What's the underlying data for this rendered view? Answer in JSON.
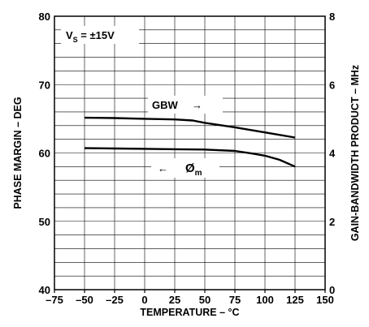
{
  "chart_data": {
    "type": "line",
    "xlabel": "TEMPERATURE – °C",
    "ylabel": "PHASE MARGIN – DEG",
    "y2label": "GAIN-BANDWIDTH PRODUCT – MHz",
    "xlim": [
      -75,
      150
    ],
    "ylim": [
      40,
      80
    ],
    "y2lim": [
      0,
      8
    ],
    "x_ticks": [
      "–75",
      "–50",
      "–25",
      "0",
      "25",
      "50",
      "75",
      "100",
      "125",
      "150"
    ],
    "y_ticks": [
      "40",
      "50",
      "60",
      "70",
      "80"
    ],
    "y2_ticks": [
      "0",
      "2",
      "4",
      "6",
      "8"
    ],
    "grid": true,
    "series": [
      {
        "name": "GBW",
        "axis": "right",
        "x": [
          -50,
          -25,
          0,
          25,
          40,
          50,
          75,
          100,
          125
        ],
        "values": [
          5.03,
          5.02,
          5.0,
          4.98,
          4.95,
          4.88,
          4.75,
          4.6,
          4.45
        ]
      },
      {
        "name": "Øm",
        "axis": "left",
        "x": [
          -50,
          -25,
          0,
          25,
          50,
          75,
          90,
          100,
          112,
          125
        ],
        "values": [
          60.7,
          60.65,
          60.6,
          60.55,
          60.5,
          60.3,
          59.9,
          59.6,
          59.0,
          58.0
        ]
      }
    ],
    "annotations": {
      "condition": {
        "main": "V",
        "sub": "S",
        "rest": " = ±15V"
      },
      "gbw_label": "GBW",
      "gbw_arrow": "→",
      "phi_arrow": "←",
      "phi_label": {
        "main": "Ø",
        "sub": "m"
      }
    }
  }
}
